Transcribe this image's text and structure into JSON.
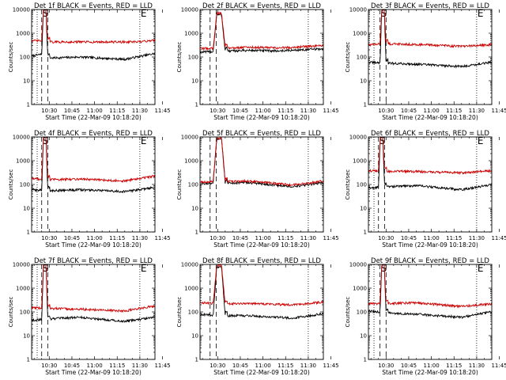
{
  "chart_data": [
    {
      "type": "line",
      "title": "Det 1f BLACK = Events, RED = LLD",
      "xlabel": "Start Time (22-Mar-09 10:18:20)",
      "ylabel": "Counts/sec",
      "x_ticks": [
        "10:30",
        "10:45",
        "11:00",
        "11:15",
        "11:30",
        "11:45"
      ],
      "x_range_min": [
        18.33,
        100
      ],
      "y_ticks": [
        "1",
        "10",
        "100",
        "1000",
        "10000"
      ],
      "yscale": "log",
      "ylim": [
        1,
        10000
      ],
      "vertical_markers": [
        {
          "label": "",
          "t": 22,
          "style": "dotted"
        },
        {
          "label": "S",
          "t": 25,
          "style": "dashed"
        },
        {
          "label": "",
          "t": 29,
          "style": "dashed"
        },
        {
          "label": "E",
          "t": 90,
          "style": "dotted"
        }
      ],
      "series": [
        {
          "color": "#000000",
          "flare": {
            "t0": 25,
            "t1": 29,
            "peak": 11000
          },
          "levels": [
            {
              "t": 18.33,
              "v": 110
            },
            {
              "t": 25,
              "v": 130
            },
            {
              "t": 30,
              "v": 90
            },
            {
              "t": 50,
              "v": 100
            },
            {
              "t": 80,
              "v": 80
            },
            {
              "t": 100,
              "v": 140
            }
          ]
        },
        {
          "color": "#cc0000",
          "flare": {
            "t0": 25,
            "t1": 29,
            "peak": 11000
          },
          "levels": [
            {
              "t": 18.33,
              "v": 480
            },
            {
              "t": 25,
              "v": 480
            },
            {
              "t": 30,
              "v": 430
            },
            {
              "t": 60,
              "v": 430
            },
            {
              "t": 90,
              "v": 430
            },
            {
              "t": 100,
              "v": 520
            }
          ]
        }
      ]
    },
    {
      "type": "line",
      "title": "Det 2f BLACK = Events, RED = LLD",
      "xlabel": "Start Time (22-Mar-09 10:18:20)",
      "ylabel": "Counts/sec",
      "x_ticks": [
        "10:30",
        "10:45",
        "11:00",
        "11:15",
        "11:30",
        "11:45"
      ],
      "x_range_min": [
        18.33,
        100
      ],
      "y_ticks": [
        "1",
        "10",
        "100",
        "1000",
        "10000"
      ],
      "yscale": "log",
      "ylim": [
        1,
        10000
      ],
      "vertical_markers": [
        {
          "label": "",
          "t": 25,
          "style": "dashed"
        },
        {
          "label": "",
          "t": 29,
          "style": "dashed"
        },
        {
          "label": "",
          "t": 90,
          "style": "dotted"
        }
      ],
      "series": [
        {
          "color": "#000000",
          "flare": {
            "t0": 27,
            "t1": 35,
            "peak": 6000
          },
          "levels": [
            {
              "t": 18.33,
              "v": 160
            },
            {
              "t": 30,
              "v": 170
            },
            {
              "t": 50,
              "v": 190
            },
            {
              "t": 70,
              "v": 180
            },
            {
              "t": 100,
              "v": 220
            }
          ]
        },
        {
          "color": "#cc0000",
          "flare": {
            "t0": 27,
            "t1": 35,
            "peak": 7000
          },
          "levels": [
            {
              "t": 18.33,
              "v": 230
            },
            {
              "t": 30,
              "v": 230
            },
            {
              "t": 50,
              "v": 260
            },
            {
              "t": 70,
              "v": 240
            },
            {
              "t": 100,
              "v": 300
            }
          ]
        }
      ]
    },
    {
      "type": "line",
      "title": "Det 3f BLACK = Events, RED = LLD",
      "xlabel": "Start Time (22-Mar-09 10:18:20)",
      "ylabel": "Counts/sec",
      "x_ticks": [
        "10:30",
        "10:45",
        "11:00",
        "11:15",
        "11:30",
        "11:45"
      ],
      "x_range_min": [
        18.33,
        100
      ],
      "y_ticks": [
        "1",
        "10",
        "100",
        "1000",
        "10000"
      ],
      "yscale": "log",
      "ylim": [
        1,
        10000
      ],
      "vertical_markers": [
        {
          "label": "",
          "t": 22,
          "style": "dotted"
        },
        {
          "label": "S",
          "t": 26,
          "style": "dashed"
        },
        {
          "label": "",
          "t": 30,
          "style": "dashed"
        },
        {
          "label": "E",
          "t": 90,
          "style": "dotted"
        }
      ],
      "series": [
        {
          "color": "#000000",
          "flare": {
            "t0": 26,
            "t1": 30,
            "peak": 11000
          },
          "levels": [
            {
              "t": 18.33,
              "v": 60
            },
            {
              "t": 30,
              "v": 55
            },
            {
              "t": 50,
              "v": 50
            },
            {
              "t": 80,
              "v": 40
            },
            {
              "t": 100,
              "v": 60
            }
          ]
        },
        {
          "color": "#cc0000",
          "flare": {
            "t0": 26,
            "t1": 30,
            "peak": 11000
          },
          "levels": [
            {
              "t": 18.33,
              "v": 330
            },
            {
              "t": 30,
              "v": 360
            },
            {
              "t": 50,
              "v": 340
            },
            {
              "t": 80,
              "v": 280
            },
            {
              "t": 100,
              "v": 330
            }
          ]
        }
      ]
    },
    {
      "type": "line",
      "title": "Det 4f BLACK = Events, RED = LLD",
      "xlabel": "Start Time (22-Mar-09 10:18:20)",
      "ylabel": "Counts/sec",
      "x_ticks": [
        "10:30",
        "10:45",
        "11:00",
        "11:15",
        "11:30",
        "11:45"
      ],
      "x_range_min": [
        18.33,
        100
      ],
      "y_ticks": [
        "1",
        "10",
        "100",
        "1000",
        "10000"
      ],
      "yscale": "log",
      "ylim": [
        1,
        10000
      ],
      "vertical_markers": [
        {
          "label": "",
          "t": 22,
          "style": "dotted"
        },
        {
          "label": "S",
          "t": 25,
          "style": "dashed"
        },
        {
          "label": "",
          "t": 29,
          "style": "dashed"
        },
        {
          "label": "E",
          "t": 90,
          "style": "dotted"
        }
      ],
      "series": [
        {
          "color": "#000000",
          "flare": {
            "t0": 25,
            "t1": 29,
            "peak": 11000
          },
          "levels": [
            {
              "t": 18.33,
              "v": 60
            },
            {
              "t": 30,
              "v": 55
            },
            {
              "t": 50,
              "v": 60
            },
            {
              "t": 80,
              "v": 50
            },
            {
              "t": 100,
              "v": 75
            }
          ]
        },
        {
          "color": "#cc0000",
          "flare": {
            "t0": 25,
            "t1": 29,
            "peak": 11000
          },
          "levels": [
            {
              "t": 18.33,
              "v": 180
            },
            {
              "t": 30,
              "v": 160
            },
            {
              "t": 50,
              "v": 170
            },
            {
              "t": 80,
              "v": 140
            },
            {
              "t": 100,
              "v": 230
            }
          ]
        }
      ]
    },
    {
      "type": "line",
      "title": "Det 5f BLACK = Events, RED = LLD",
      "xlabel": "Start Time (22-Mar-09 10:18:20)",
      "ylabel": "Counts/sec",
      "x_ticks": [
        "10:30",
        "10:45",
        "11:00",
        "11:15",
        "11:30",
        "11:45"
      ],
      "x_range_min": [
        18.33,
        100
      ],
      "y_ticks": [
        "1",
        "10",
        "100",
        "1000",
        "10000"
      ],
      "yscale": "log",
      "ylim": [
        1,
        10000
      ],
      "vertical_markers": [
        {
          "label": "",
          "t": 25,
          "style": "dashed"
        },
        {
          "label": "",
          "t": 29,
          "style": "dashed"
        },
        {
          "label": "",
          "t": 90,
          "style": "dotted"
        }
      ],
      "series": [
        {
          "color": "#000000",
          "flare": {
            "t0": 27,
            "t1": 35,
            "peak": 8000
          },
          "levels": [
            {
              "t": 18.33,
              "v": 110
            },
            {
              "t": 30,
              "v": 110
            },
            {
              "t": 50,
              "v": 120
            },
            {
              "t": 80,
              "v": 80
            },
            {
              "t": 100,
              "v": 120
            }
          ]
        },
        {
          "color": "#cc0000",
          "flare": {
            "t0": 27,
            "t1": 35,
            "peak": 9000
          },
          "levels": [
            {
              "t": 18.33,
              "v": 130
            },
            {
              "t": 30,
              "v": 130
            },
            {
              "t": 50,
              "v": 140
            },
            {
              "t": 80,
              "v": 95
            },
            {
              "t": 100,
              "v": 140
            }
          ]
        }
      ]
    },
    {
      "type": "line",
      "title": "Det 6f BLACK = Events, RED = LLD",
      "xlabel": "Start Time (22-Mar-09 10:18:20)",
      "ylabel": "Counts/sec",
      "x_ticks": [
        "10:30",
        "10:45",
        "11:00",
        "11:15",
        "11:30",
        "11:45"
      ],
      "x_range_min": [
        18.33,
        100
      ],
      "y_ticks": [
        "1",
        "10",
        "100",
        "1000",
        "10000"
      ],
      "yscale": "log",
      "ylim": [
        1,
        10000
      ],
      "vertical_markers": [
        {
          "label": "",
          "t": 22,
          "style": "dotted"
        },
        {
          "label": "S",
          "t": 25,
          "style": "dashed"
        },
        {
          "label": "",
          "t": 29,
          "style": "dashed"
        },
        {
          "label": "E",
          "t": 90,
          "style": "dotted"
        }
      ],
      "series": [
        {
          "color": "#000000",
          "flare": {
            "t0": 25,
            "t1": 29,
            "peak": 11000
          },
          "levels": [
            {
              "t": 18.33,
              "v": 70
            },
            {
              "t": 30,
              "v": 80
            },
            {
              "t": 50,
              "v": 90
            },
            {
              "t": 80,
              "v": 60
            },
            {
              "t": 100,
              "v": 100
            }
          ]
        },
        {
          "color": "#cc0000",
          "flare": {
            "t0": 25,
            "t1": 29,
            "peak": 11000
          },
          "levels": [
            {
              "t": 18.33,
              "v": 380
            },
            {
              "t": 30,
              "v": 360
            },
            {
              "t": 50,
              "v": 350
            },
            {
              "t": 80,
              "v": 310
            },
            {
              "t": 100,
              "v": 380
            }
          ]
        }
      ]
    },
    {
      "type": "line",
      "title": "Det 7f BLACK = Events, RED = LLD",
      "xlabel": "Start Time (22-Mar-09 10:18:20)",
      "ylabel": "Counts/sec",
      "x_ticks": [
        "10:30",
        "10:45",
        "11:00",
        "11:15",
        "11:30",
        "11:45"
      ],
      "x_range_min": [
        18.33,
        100
      ],
      "y_ticks": [
        "1",
        "10",
        "100",
        "1000",
        "10000"
      ],
      "yscale": "log",
      "ylim": [
        1,
        10000
      ],
      "vertical_markers": [
        {
          "label": "",
          "t": 22,
          "style": "dotted"
        },
        {
          "label": "S",
          "t": 25,
          "style": "dashed"
        },
        {
          "label": "",
          "t": 29,
          "style": "dashed"
        },
        {
          "label": "E",
          "t": 90,
          "style": "dotted"
        }
      ],
      "series": [
        {
          "color": "#000000",
          "flare": {
            "t0": 25,
            "t1": 29,
            "peak": 11000
          },
          "levels": [
            {
              "t": 18.33,
              "v": 45
            },
            {
              "t": 30,
              "v": 50
            },
            {
              "t": 50,
              "v": 60
            },
            {
              "t": 80,
              "v": 40
            },
            {
              "t": 100,
              "v": 60
            }
          ]
        },
        {
          "color": "#cc0000",
          "flare": {
            "t0": 25,
            "t1": 29,
            "peak": 11000
          },
          "levels": [
            {
              "t": 18.33,
              "v": 150
            },
            {
              "t": 30,
              "v": 140
            },
            {
              "t": 50,
              "v": 130
            },
            {
              "t": 80,
              "v": 110
            },
            {
              "t": 100,
              "v": 180
            }
          ]
        }
      ]
    },
    {
      "type": "line",
      "title": "Det 8f BLACK = Events, RED = LLD",
      "xlabel": "Start Time (22-Mar-09 10:18:20)",
      "ylabel": "Counts/sec",
      "x_ticks": [
        "10:30",
        "10:45",
        "11:00",
        "11:15",
        "11:30",
        "11:45"
      ],
      "x_range_min": [
        18.33,
        100
      ],
      "y_ticks": [
        "1",
        "10",
        "100",
        "1000",
        "10000"
      ],
      "yscale": "log",
      "ylim": [
        1,
        10000
      ],
      "vertical_markers": [
        {
          "label": "",
          "t": 25,
          "style": "dashed"
        },
        {
          "label": "",
          "t": 29,
          "style": "dashed"
        },
        {
          "label": "",
          "t": 90,
          "style": "dotted"
        }
      ],
      "series": [
        {
          "color": "#000000",
          "flare": {
            "t0": 27,
            "t1": 35,
            "peak": 8000
          },
          "levels": [
            {
              "t": 18.33,
              "v": 80
            },
            {
              "t": 30,
              "v": 70
            },
            {
              "t": 50,
              "v": 70
            },
            {
              "t": 80,
              "v": 55
            },
            {
              "t": 100,
              "v": 85
            }
          ]
        },
        {
          "color": "#cc0000",
          "flare": {
            "t0": 27,
            "t1": 35,
            "peak": 9000
          },
          "levels": [
            {
              "t": 18.33,
              "v": 250
            },
            {
              "t": 30,
              "v": 220
            },
            {
              "t": 50,
              "v": 230
            },
            {
              "t": 80,
              "v": 200
            },
            {
              "t": 100,
              "v": 260
            }
          ]
        }
      ]
    },
    {
      "type": "line",
      "title": "Det 9f BLACK = Events, RED = LLD",
      "xlabel": "Start Time (22-Mar-09 10:18:20)",
      "ylabel": "Counts/sec",
      "x_ticks": [
        "10:30",
        "10:45",
        "11:00",
        "11:15",
        "11:30",
        "11:45"
      ],
      "x_range_min": [
        18.33,
        100
      ],
      "y_ticks": [
        "1",
        "10",
        "100",
        "1000",
        "10000"
      ],
      "yscale": "log",
      "ylim": [
        1,
        10000
      ],
      "vertical_markers": [
        {
          "label": "",
          "t": 22,
          "style": "dotted"
        },
        {
          "label": "S",
          "t": 26,
          "style": "dashed"
        },
        {
          "label": "",
          "t": 30,
          "style": "dashed"
        },
        {
          "label": "E",
          "t": 90,
          "style": "dotted"
        }
      ],
      "series": [
        {
          "color": "#000000",
          "flare": {
            "t0": 26,
            "t1": 30,
            "peak": 11000
          },
          "levels": [
            {
              "t": 18.33,
              "v": 110
            },
            {
              "t": 30,
              "v": 90
            },
            {
              "t": 50,
              "v": 80
            },
            {
              "t": 80,
              "v": 60
            },
            {
              "t": 100,
              "v": 100
            }
          ]
        },
        {
          "color": "#cc0000",
          "flare": {
            "t0": 26,
            "t1": 30,
            "peak": 11000
          },
          "levels": [
            {
              "t": 18.33,
              "v": 220
            },
            {
              "t": 30,
              "v": 230
            },
            {
              "t": 50,
              "v": 240
            },
            {
              "t": 80,
              "v": 170
            },
            {
              "t": 100,
              "v": 220
            }
          ]
        }
      ]
    }
  ]
}
